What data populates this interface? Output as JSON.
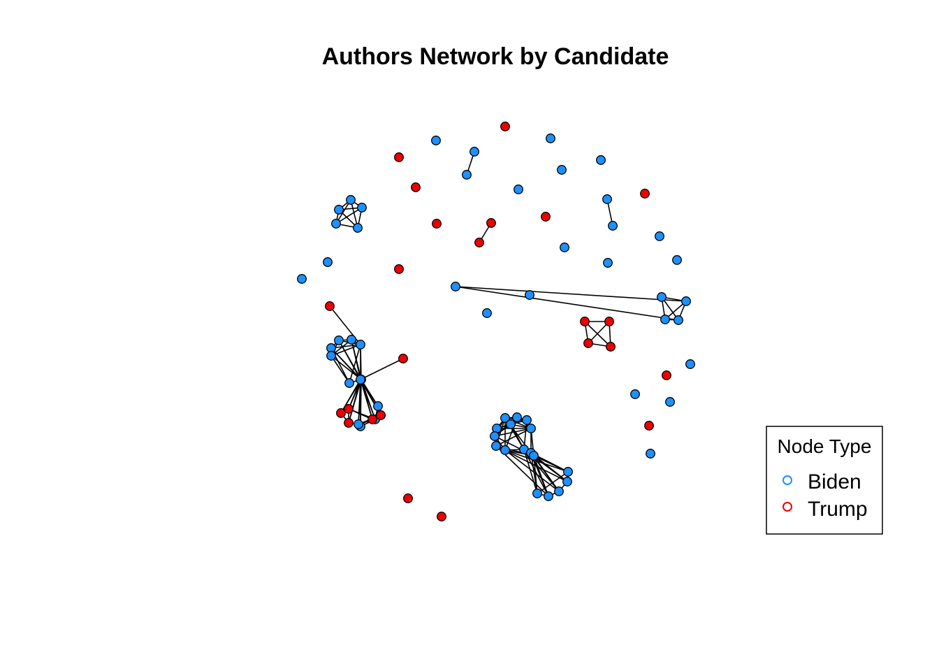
{
  "title": "Authors Network by Candidate",
  "legend": {
    "title": "Node Type",
    "entries": [
      {
        "label": "Biden",
        "color": "#1E90FF"
      },
      {
        "label": "Trump",
        "color": "#EE0000"
      }
    ]
  },
  "colors": {
    "Biden": "#1E90FF",
    "Trump": "#EE0000",
    "node_border": "#000000",
    "edge": "#000000"
  },
  "nodes": [
    {
      "id": "n1",
      "type": "Trump"
    },
    {
      "id": "n2",
      "type": "Biden"
    },
    {
      "id": "n3",
      "type": "Biden"
    },
    {
      "id": "n4",
      "type": "Trump"
    },
    {
      "id": "n5",
      "type": "Biden"
    },
    {
      "id": "n6",
      "type": "Biden"
    },
    {
      "id": "n7",
      "type": "Biden"
    },
    {
      "id": "n8",
      "type": "Biden"
    },
    {
      "id": "n9",
      "type": "Trump"
    },
    {
      "id": "n10",
      "type": "Biden"
    },
    {
      "id": "n11",
      "type": "Trump"
    },
    {
      "id": "n12",
      "type": "Trump"
    },
    {
      "id": "n13",
      "type": "Trump"
    },
    {
      "id": "n14",
      "type": "Trump"
    },
    {
      "id": "n15",
      "type": "Biden"
    },
    {
      "id": "n16",
      "type": "Biden"
    },
    {
      "id": "n17",
      "type": "Biden"
    },
    {
      "id": "n18",
      "type": "Biden"
    },
    {
      "id": "n19",
      "type": "Biden"
    },
    {
      "id": "n20",
      "type": "Biden"
    },
    {
      "id": "n21",
      "type": "Biden"
    },
    {
      "id": "n22",
      "type": "Biden"
    },
    {
      "id": "n23",
      "type": "Biden"
    },
    {
      "id": "n24",
      "type": "Biden"
    },
    {
      "id": "n25",
      "type": "Biden"
    },
    {
      "id": "n26",
      "type": "Trump"
    },
    {
      "id": "n27",
      "type": "Biden"
    },
    {
      "id": "n28",
      "type": "Biden"
    },
    {
      "id": "n29",
      "type": "Biden"
    },
    {
      "id": "n30",
      "type": "Biden"
    },
    {
      "id": "n31",
      "type": "Biden"
    },
    {
      "id": "n32",
      "type": "Biden"
    },
    {
      "id": "n33",
      "type": "Biden"
    },
    {
      "id": "n34",
      "type": "Trump"
    },
    {
      "id": "n35",
      "type": "Trump"
    },
    {
      "id": "n36",
      "type": "Trump"
    },
    {
      "id": "n37",
      "type": "Trump"
    },
    {
      "id": "n38",
      "type": "Biden"
    },
    {
      "id": "n39",
      "type": "Biden"
    },
    {
      "id": "n40",
      "type": "Biden"
    },
    {
      "id": "n41",
      "type": "Biden"
    },
    {
      "id": "n42",
      "type": "Biden"
    },
    {
      "id": "n43",
      "type": "Biden"
    },
    {
      "id": "n44",
      "type": "Biden"
    },
    {
      "id": "n45",
      "type": "Biden"
    },
    {
      "id": "n46",
      "type": "Biden"
    },
    {
      "id": "n47",
      "type": "Biden"
    },
    {
      "id": "n48",
      "type": "Biden"
    },
    {
      "id": "n49",
      "type": "Biden"
    },
    {
      "id": "n50",
      "type": "Biden"
    },
    {
      "id": "n51",
      "type": "Trump"
    },
    {
      "id": "n52",
      "type": "Biden"
    },
    {
      "id": "n53",
      "type": "Biden"
    },
    {
      "id": "n54",
      "type": "Trump"
    },
    {
      "id": "n55",
      "type": "Trump"
    },
    {
      "id": "n56",
      "type": "Biden"
    },
    {
      "id": "n57",
      "type": "Biden"
    },
    {
      "id": "n58",
      "type": "Trump"
    },
    {
      "id": "n59",
      "type": "Trump"
    },
    {
      "id": "n60",
      "type": "Trump"
    },
    {
      "id": "n61",
      "type": "Biden"
    },
    {
      "id": "n62",
      "type": "Biden"
    },
    {
      "id": "n63",
      "type": "Biden"
    },
    {
      "id": "n64",
      "type": "Biden"
    },
    {
      "id": "n65",
      "type": "Biden"
    },
    {
      "id": "n66",
      "type": "Biden"
    },
    {
      "id": "n67",
      "type": "Biden"
    },
    {
      "id": "n68",
      "type": "Biden"
    },
    {
      "id": "n69",
      "type": "Biden"
    },
    {
      "id": "n70",
      "type": "Biden"
    },
    {
      "id": "n71",
      "type": "Biden"
    },
    {
      "id": "n72",
      "type": "Biden"
    },
    {
      "id": "n73",
      "type": "Biden"
    },
    {
      "id": "n74",
      "type": "Biden"
    },
    {
      "id": "n75",
      "type": "Biden"
    },
    {
      "id": "n76",
      "type": "Biden"
    },
    {
      "id": "n77",
      "type": "Biden"
    },
    {
      "id": "n78",
      "type": "Biden"
    },
    {
      "id": "n79",
      "type": "Biden"
    },
    {
      "id": "n80",
      "type": "Trump"
    },
    {
      "id": "n81",
      "type": "Trump"
    }
  ],
  "edges": [
    [
      "n5",
      "n6"
    ],
    [
      "n12",
      "n13"
    ],
    [
      "n17",
      "n18"
    ],
    [
      "n19",
      "n20"
    ],
    [
      "n19",
      "n21"
    ],
    [
      "n19",
      "n22"
    ],
    [
      "n19",
      "n23"
    ],
    [
      "n20",
      "n21"
    ],
    [
      "n20",
      "n22"
    ],
    [
      "n20",
      "n23"
    ],
    [
      "n21",
      "n22"
    ],
    [
      "n21",
      "n23"
    ],
    [
      "n22",
      "n23"
    ],
    [
      "n31",
      "n32"
    ],
    [
      "n31",
      "n33"
    ],
    [
      "n31",
      "n30"
    ],
    [
      "n32",
      "n33"
    ],
    [
      "n32",
      "n30"
    ],
    [
      "n33",
      "n30"
    ],
    [
      "n29",
      "n31"
    ],
    [
      "n29",
      "n33"
    ],
    [
      "n34",
      "n35"
    ],
    [
      "n34",
      "n36"
    ],
    [
      "n34",
      "n37"
    ],
    [
      "n35",
      "n36"
    ],
    [
      "n35",
      "n37"
    ],
    [
      "n36",
      "n37"
    ],
    [
      "n26",
      "n40"
    ],
    [
      "n40",
      "n38"
    ],
    [
      "n40",
      "n39"
    ],
    [
      "n40",
      "n41"
    ],
    [
      "n40",
      "n42"
    ],
    [
      "n40",
      "n43"
    ],
    [
      "n40",
      "n44"
    ],
    [
      "n40",
      "n45"
    ],
    [
      "n38",
      "n39"
    ],
    [
      "n38",
      "n41"
    ],
    [
      "n38",
      "n42"
    ],
    [
      "n39",
      "n42"
    ],
    [
      "n41",
      "n42"
    ],
    [
      "n41",
      "n43"
    ],
    [
      "n42",
      "n43"
    ],
    [
      "n38",
      "n44"
    ],
    [
      "n38",
      "n45"
    ],
    [
      "n39",
      "n44"
    ],
    [
      "n39",
      "n45"
    ],
    [
      "n41",
      "n44"
    ],
    [
      "n41",
      "n45"
    ],
    [
      "n42",
      "n44"
    ],
    [
      "n43",
      "n45"
    ],
    [
      "n51",
      "n45"
    ],
    [
      "n44",
      "n45"
    ],
    [
      "n44",
      "n46"
    ],
    [
      "n44",
      "n47"
    ],
    [
      "n44",
      "n48"
    ],
    [
      "n44",
      "n49"
    ],
    [
      "n44",
      "n50"
    ],
    [
      "n44",
      "n54"
    ],
    [
      "n44",
      "n55"
    ],
    [
      "n44",
      "n58"
    ],
    [
      "n44",
      "n59"
    ],
    [
      "n44",
      "n60"
    ],
    [
      "n45",
      "n46"
    ],
    [
      "n45",
      "n47"
    ],
    [
      "n45",
      "n48"
    ],
    [
      "n45",
      "n49"
    ],
    [
      "n45",
      "n50"
    ],
    [
      "n45",
      "n54"
    ],
    [
      "n45",
      "n55"
    ],
    [
      "n45",
      "n58"
    ],
    [
      "n45",
      "n59"
    ],
    [
      "n45",
      "n60"
    ],
    [
      "n46",
      "n47"
    ],
    [
      "n46",
      "n49"
    ],
    [
      "n47",
      "n49"
    ],
    [
      "n47",
      "n50"
    ],
    [
      "n48",
      "n49"
    ],
    [
      "n49",
      "n50"
    ],
    [
      "n54",
      "n55"
    ],
    [
      "n54",
      "n58"
    ],
    [
      "n55",
      "n58"
    ],
    [
      "n59",
      "n60"
    ],
    [
      "n59",
      "n55"
    ],
    [
      "n60",
      "n46"
    ],
    [
      "n55",
      "n49"
    ],
    [
      "n61",
      "n62"
    ],
    [
      "n61",
      "n63"
    ],
    [
      "n61",
      "n64"
    ],
    [
      "n61",
      "n65"
    ],
    [
      "n61",
      "n66"
    ],
    [
      "n61",
      "n67"
    ],
    [
      "n61",
      "n68"
    ],
    [
      "n61",
      "n69"
    ],
    [
      "n61",
      "n70"
    ],
    [
      "n61",
      "n71"
    ],
    [
      "n62",
      "n63"
    ],
    [
      "n62",
      "n65"
    ],
    [
      "n62",
      "n66"
    ],
    [
      "n62",
      "n67"
    ],
    [
      "n62",
      "n69"
    ],
    [
      "n63",
      "n64"
    ],
    [
      "n63",
      "n65"
    ],
    [
      "n63",
      "n66"
    ],
    [
      "n63",
      "n70"
    ],
    [
      "n64",
      "n65"
    ],
    [
      "n64",
      "n66"
    ],
    [
      "n64",
      "n67"
    ],
    [
      "n64",
      "n68"
    ],
    [
      "n65",
      "n66"
    ],
    [
      "n65",
      "n67"
    ],
    [
      "n66",
      "n67"
    ],
    [
      "n66",
      "n68"
    ],
    [
      "n67",
      "n68"
    ],
    [
      "n68",
      "n69"
    ],
    [
      "n69",
      "n70"
    ],
    [
      "n70",
      "n71"
    ],
    [
      "n66",
      "n71"
    ],
    [
      "n65",
      "n70"
    ],
    [
      "n67",
      "n69"
    ],
    [
      "n68",
      "n72"
    ],
    [
      "n69",
      "n72"
    ],
    [
      "n70",
      "n72"
    ],
    [
      "n71",
      "n72"
    ],
    [
      "n66",
      "n72"
    ],
    [
      "n67",
      "n72"
    ],
    [
      "n72",
      "n73"
    ],
    [
      "n72",
      "n74"
    ],
    [
      "n72",
      "n75"
    ],
    [
      "n72",
      "n76"
    ],
    [
      "n72",
      "n77"
    ],
    [
      "n71",
      "n73"
    ],
    [
      "n71",
      "n74"
    ],
    [
      "n71",
      "n75"
    ],
    [
      "n71",
      "n76"
    ],
    [
      "n71",
      "n77"
    ],
    [
      "n70",
      "n73"
    ],
    [
      "n70",
      "n74"
    ],
    [
      "n70",
      "n75"
    ],
    [
      "n70",
      "n76"
    ],
    [
      "n70",
      "n77"
    ],
    [
      "n69",
      "n73"
    ],
    [
      "n69",
      "n75"
    ],
    [
      "n68",
      "n74"
    ],
    [
      "n68",
      "n76"
    ],
    [
      "n73",
      "n74"
    ],
    [
      "n74",
      "n75"
    ],
    [
      "n75",
      "n76"
    ],
    [
      "n76",
      "n77"
    ],
    [
      "n73",
      "n77"
    ]
  ]
}
